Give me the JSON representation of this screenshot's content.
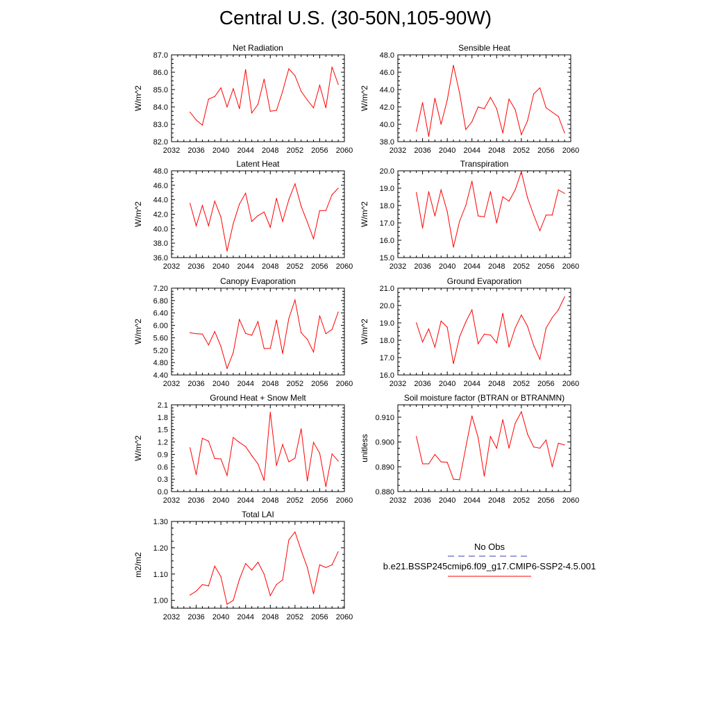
{
  "page": {
    "title": "Central U.S. (30-50N,105-90W)"
  },
  "legend": {
    "obs_label": "No Obs",
    "obs_color": "#3b3bb3",
    "case_label": "b.e21.BSSP245cmip6.f09_g17.CMIP6-SSP2-4.5.001",
    "case_color": "#ff0000"
  },
  "chart_data": [
    {
      "type": "line",
      "title": "Net Radiation",
      "ylabel": "W/m^2",
      "xlim": [
        2032,
        2060
      ],
      "xticks": [
        2032,
        2036,
        2040,
        2044,
        2048,
        2052,
        2056,
        2060
      ],
      "xticklabels": [
        "2032",
        "2036",
        "2040",
        "2044",
        "2048",
        "2052",
        "2056",
        "2060"
      ],
      "ylim": [
        82.0,
        87.0
      ],
      "yticks": [
        82.0,
        83.0,
        84.0,
        85.0,
        86.0,
        87.0
      ],
      "yticklabels": [
        "82.0",
        "83.0",
        "84.0",
        "85.0",
        "86.0",
        "87.0"
      ],
      "series": [
        {
          "color": "#ff0000",
          "x": [
            2035,
            2036,
            2037,
            2038,
            2039,
            2040,
            2041,
            2042,
            2043,
            2044,
            2045,
            2046,
            2047,
            2048,
            2049,
            2050,
            2051,
            2052,
            2053,
            2054,
            2055,
            2056,
            2057,
            2058,
            2059
          ],
          "y": [
            83.7,
            83.25,
            82.95,
            84.45,
            84.6,
            85.1,
            84.0,
            85.05,
            83.9,
            86.15,
            83.65,
            84.15,
            85.6,
            83.75,
            83.8,
            84.9,
            86.2,
            85.8,
            84.9,
            84.4,
            83.95,
            85.25,
            83.95,
            86.3,
            85.3
          ]
        }
      ]
    },
    {
      "type": "line",
      "title": "Sensible Heat",
      "ylabel": "W/m^2",
      "xlim": [
        2032,
        2060
      ],
      "xticks": [
        2032,
        2036,
        2040,
        2044,
        2048,
        2052,
        2056,
        2060
      ],
      "xticklabels": [
        "2032",
        "2036",
        "2040",
        "2044",
        "2048",
        "2052",
        "2056",
        "2060"
      ],
      "ylim": [
        38.0,
        48.0
      ],
      "yticks": [
        38.0,
        40.0,
        42.0,
        44.0,
        46.0,
        48.0
      ],
      "yticklabels": [
        "38.0",
        "40.0",
        "42.0",
        "44.0",
        "46.0",
        "48.0"
      ],
      "series": [
        {
          "color": "#ff0000",
          "x": [
            2035,
            2036,
            2037,
            2038,
            2039,
            2040,
            2041,
            2042,
            2043,
            2044,
            2045,
            2046,
            2047,
            2048,
            2049,
            2050,
            2051,
            2052,
            2053,
            2054,
            2055,
            2056,
            2057,
            2058,
            2059
          ],
          "y": [
            39.2,
            42.5,
            38.6,
            43.0,
            40.0,
            42.8,
            46.8,
            43.6,
            39.4,
            40.3,
            42.0,
            41.8,
            43.1,
            41.8,
            39.0,
            42.9,
            41.7,
            38.8,
            40.4,
            43.5,
            44.2,
            41.9,
            41.4,
            40.9,
            39.0
          ]
        }
      ]
    },
    {
      "type": "line",
      "title": "Latent Heat",
      "ylabel": "W/m^2",
      "xlim": [
        2032,
        2060
      ],
      "xticks": [
        2032,
        2036,
        2040,
        2044,
        2048,
        2052,
        2056,
        2060
      ],
      "xticklabels": [
        "2032",
        "2036",
        "2040",
        "2044",
        "2048",
        "2052",
        "2056",
        "2060"
      ],
      "ylim": [
        36.0,
        48.0
      ],
      "yticks": [
        36.0,
        38.0,
        40.0,
        42.0,
        44.0,
        46.0,
        48.0
      ],
      "yticklabels": [
        "36.0",
        "38.0",
        "40.0",
        "42.0",
        "44.0",
        "46.0",
        "48.0"
      ],
      "series": [
        {
          "color": "#ff0000",
          "x": [
            2035,
            2036,
            2037,
            2038,
            2039,
            2040,
            2041,
            2042,
            2043,
            2044,
            2045,
            2046,
            2047,
            2048,
            2049,
            2050,
            2051,
            2052,
            2053,
            2054,
            2055,
            2056,
            2057,
            2058,
            2059
          ],
          "y": [
            43.5,
            40.4,
            43.2,
            40.4,
            43.8,
            41.6,
            36.9,
            40.7,
            43.4,
            44.9,
            41.0,
            41.8,
            42.3,
            40.2,
            44.2,
            41.0,
            44.0,
            46.2,
            43.1,
            40.9,
            38.6,
            42.5,
            42.5,
            44.7,
            45.6
          ]
        }
      ]
    },
    {
      "type": "line",
      "title": "Transpiration",
      "ylabel": "W/m^2",
      "xlim": [
        2032,
        2060
      ],
      "xticks": [
        2032,
        2036,
        2040,
        2044,
        2048,
        2052,
        2056,
        2060
      ],
      "xticklabels": [
        "2032",
        "2036",
        "2040",
        "2044",
        "2048",
        "2052",
        "2056",
        "2060"
      ],
      "ylim": [
        15.0,
        20.0
      ],
      "yticks": [
        15.0,
        16.0,
        17.0,
        18.0,
        19.0,
        20.0
      ],
      "yticklabels": [
        "15.0",
        "16.0",
        "17.0",
        "18.0",
        "19.0",
        "20.0"
      ],
      "series": [
        {
          "color": "#ff0000",
          "x": [
            2035,
            2036,
            2037,
            2038,
            2039,
            2040,
            2041,
            2042,
            2043,
            2044,
            2045,
            2046,
            2047,
            2048,
            2049,
            2050,
            2051,
            2052,
            2053,
            2054,
            2055,
            2056,
            2057,
            2058,
            2059
          ],
          "y": [
            18.75,
            16.7,
            18.8,
            17.4,
            18.9,
            17.65,
            15.6,
            17.1,
            18.0,
            19.4,
            17.4,
            17.35,
            18.8,
            17.0,
            18.5,
            18.25,
            18.9,
            19.95,
            18.45,
            17.45,
            16.55,
            17.45,
            17.45,
            18.9,
            18.7
          ]
        }
      ]
    },
    {
      "type": "line",
      "title": "Canopy Evaporation",
      "ylabel": "W/m^2",
      "xlim": [
        2032,
        2060
      ],
      "xticks": [
        2032,
        2036,
        2040,
        2044,
        2048,
        2052,
        2056,
        2060
      ],
      "xticklabels": [
        "2032",
        "2036",
        "2040",
        "2044",
        "2048",
        "2052",
        "2056",
        "2060"
      ],
      "ylim": [
        4.4,
        7.2
      ],
      "yticks": [
        4.4,
        4.8,
        5.2,
        5.6,
        6.0,
        6.4,
        6.8,
        7.2
      ],
      "yticklabels": [
        "4.40",
        "4.80",
        "5.20",
        "5.60",
        "6.00",
        "6.40",
        "6.80",
        "7.20"
      ],
      "series": [
        {
          "color": "#ff0000",
          "x": [
            2035,
            2036,
            2037,
            2038,
            2039,
            2040,
            2041,
            2042,
            2043,
            2044,
            2045,
            2046,
            2047,
            2048,
            2049,
            2050,
            2051,
            2052,
            2053,
            2054,
            2055,
            2056,
            2057,
            2058,
            2059
          ],
          "y": [
            5.76,
            5.73,
            5.72,
            5.37,
            5.8,
            5.32,
            4.61,
            5.12,
            6.19,
            5.74,
            5.68,
            6.12,
            5.25,
            5.26,
            6.17,
            5.09,
            6.22,
            6.82,
            5.76,
            5.55,
            5.14,
            6.31,
            5.73,
            5.87,
            6.43
          ]
        }
      ]
    },
    {
      "type": "line",
      "title": "Ground Evaporation",
      "ylabel": "W/m^2",
      "xlim": [
        2032,
        2060
      ],
      "xticks": [
        2032,
        2036,
        2040,
        2044,
        2048,
        2052,
        2056,
        2060
      ],
      "xticklabels": [
        "2032",
        "2036",
        "2040",
        "2044",
        "2048",
        "2052",
        "2056",
        "2060"
      ],
      "ylim": [
        16.0,
        21.0
      ],
      "yticks": [
        16.0,
        17.0,
        18.0,
        19.0,
        20.0,
        21.0
      ],
      "yticklabels": [
        "16.0",
        "17.0",
        "18.0",
        "19.0",
        "20.0",
        "21.0"
      ],
      "series": [
        {
          "color": "#ff0000",
          "x": [
            2035,
            2036,
            2037,
            2038,
            2039,
            2040,
            2041,
            2042,
            2043,
            2044,
            2045,
            2046,
            2047,
            2048,
            2049,
            2050,
            2051,
            2052,
            2053,
            2054,
            2055,
            2056,
            2057,
            2058,
            2059
          ],
          "y": [
            19.0,
            17.9,
            18.65,
            17.6,
            19.1,
            18.75,
            16.65,
            18.2,
            19.05,
            19.75,
            17.8,
            18.35,
            18.3,
            17.85,
            19.55,
            17.6,
            18.7,
            19.45,
            18.8,
            17.7,
            16.9,
            18.7,
            19.3,
            19.75,
            20.5
          ]
        }
      ]
    },
    {
      "type": "line",
      "title": "Ground Heat + Snow Melt",
      "ylabel": "W/m^2",
      "xlim": [
        2032,
        2060
      ],
      "xticks": [
        2032,
        2036,
        2040,
        2044,
        2048,
        2052,
        2056,
        2060
      ],
      "xticklabels": [
        "2032",
        "2036",
        "2040",
        "2044",
        "2048",
        "2052",
        "2056",
        "2060"
      ],
      "ylim": [
        0.0,
        2.1
      ],
      "yticks": [
        0.0,
        0.3,
        0.6,
        0.9,
        1.2,
        1.5,
        1.8,
        2.1
      ],
      "yticklabels": [
        "0.0",
        "0.3",
        "0.6",
        "0.9",
        "1.2",
        "1.5",
        "1.8",
        "2.1"
      ],
      "series": [
        {
          "color": "#ff0000",
          "x": [
            2035,
            2036,
            2037,
            2038,
            2039,
            2040,
            2041,
            2042,
            2043,
            2044,
            2045,
            2046,
            2047,
            2048,
            2049,
            2050,
            2051,
            2052,
            2053,
            2054,
            2055,
            2056,
            2057,
            2058,
            2059
          ],
          "y": [
            1.06,
            0.41,
            1.29,
            1.22,
            0.8,
            0.79,
            0.39,
            1.31,
            1.19,
            1.09,
            0.87,
            0.67,
            0.27,
            1.92,
            0.63,
            1.14,
            0.72,
            0.81,
            1.52,
            0.26,
            1.19,
            0.93,
            0.12,
            0.91,
            0.74
          ]
        }
      ]
    },
    {
      "type": "line",
      "title": "Soil moisture factor (BTRAN or BTRANMN)",
      "ylabel": "unitless",
      "xlim": [
        2032,
        2060
      ],
      "xticks": [
        2032,
        2036,
        2040,
        2044,
        2048,
        2052,
        2056,
        2060
      ],
      "xticklabels": [
        "2032",
        "2036",
        "2040",
        "2044",
        "2048",
        "2052",
        "2056",
        "2060"
      ],
      "ylim": [
        0.88,
        0.915
      ],
      "yticks": [
        0.88,
        0.89,
        0.9,
        0.91
      ],
      "yticklabels": [
        "0.880",
        "0.890",
        "0.900",
        "0.910"
      ],
      "series": [
        {
          "color": "#ff0000",
          "x": [
            2035,
            2036,
            2037,
            2038,
            2039,
            2040,
            2041,
            2042,
            2043,
            2044,
            2045,
            2046,
            2047,
            2048,
            2049,
            2050,
            2051,
            2052,
            2053,
            2054,
            2055,
            2056,
            2057,
            2058,
            2059
          ],
          "y": [
            0.9022,
            0.8912,
            0.8912,
            0.895,
            0.892,
            0.8918,
            0.885,
            0.8848,
            0.8978,
            0.9105,
            0.9018,
            0.8862,
            0.9022,
            0.8975,
            0.909,
            0.8975,
            0.9075,
            0.9122,
            0.9032,
            0.898,
            0.8975,
            0.9008,
            0.89,
            0.8995,
            0.8988
          ]
        }
      ]
    },
    {
      "type": "line",
      "title": "Total LAI",
      "ylabel": "m2/m2",
      "xlim": [
        2032,
        2060
      ],
      "xticks": [
        2032,
        2036,
        2040,
        2044,
        2048,
        2052,
        2056,
        2060
      ],
      "xticklabels": [
        "2032",
        "2036",
        "2040",
        "2044",
        "2048",
        "2052",
        "2056",
        "2060"
      ],
      "ylim": [
        0.97,
        1.3
      ],
      "yticks": [
        1.0,
        1.1,
        1.2,
        1.3
      ],
      "yticklabels": [
        "1.00",
        "1.10",
        "1.20",
        "1.30"
      ],
      "series": [
        {
          "color": "#ff0000",
          "x": [
            2035,
            2036,
            2037,
            2038,
            2039,
            2040,
            2041,
            2042,
            2043,
            2044,
            2045,
            2046,
            2047,
            2048,
            2049,
            2050,
            2051,
            2052,
            2053,
            2054,
            2055,
            2056,
            2057,
            2058,
            2059
          ],
          "y": [
            1.02,
            1.035,
            1.06,
            1.055,
            1.13,
            1.09,
            0.985,
            1.0,
            1.08,
            1.14,
            1.115,
            1.145,
            1.1,
            1.018,
            1.06,
            1.078,
            1.23,
            1.26,
            1.19,
            1.125,
            1.025,
            1.135,
            1.125,
            1.135,
            1.185
          ]
        }
      ]
    }
  ]
}
